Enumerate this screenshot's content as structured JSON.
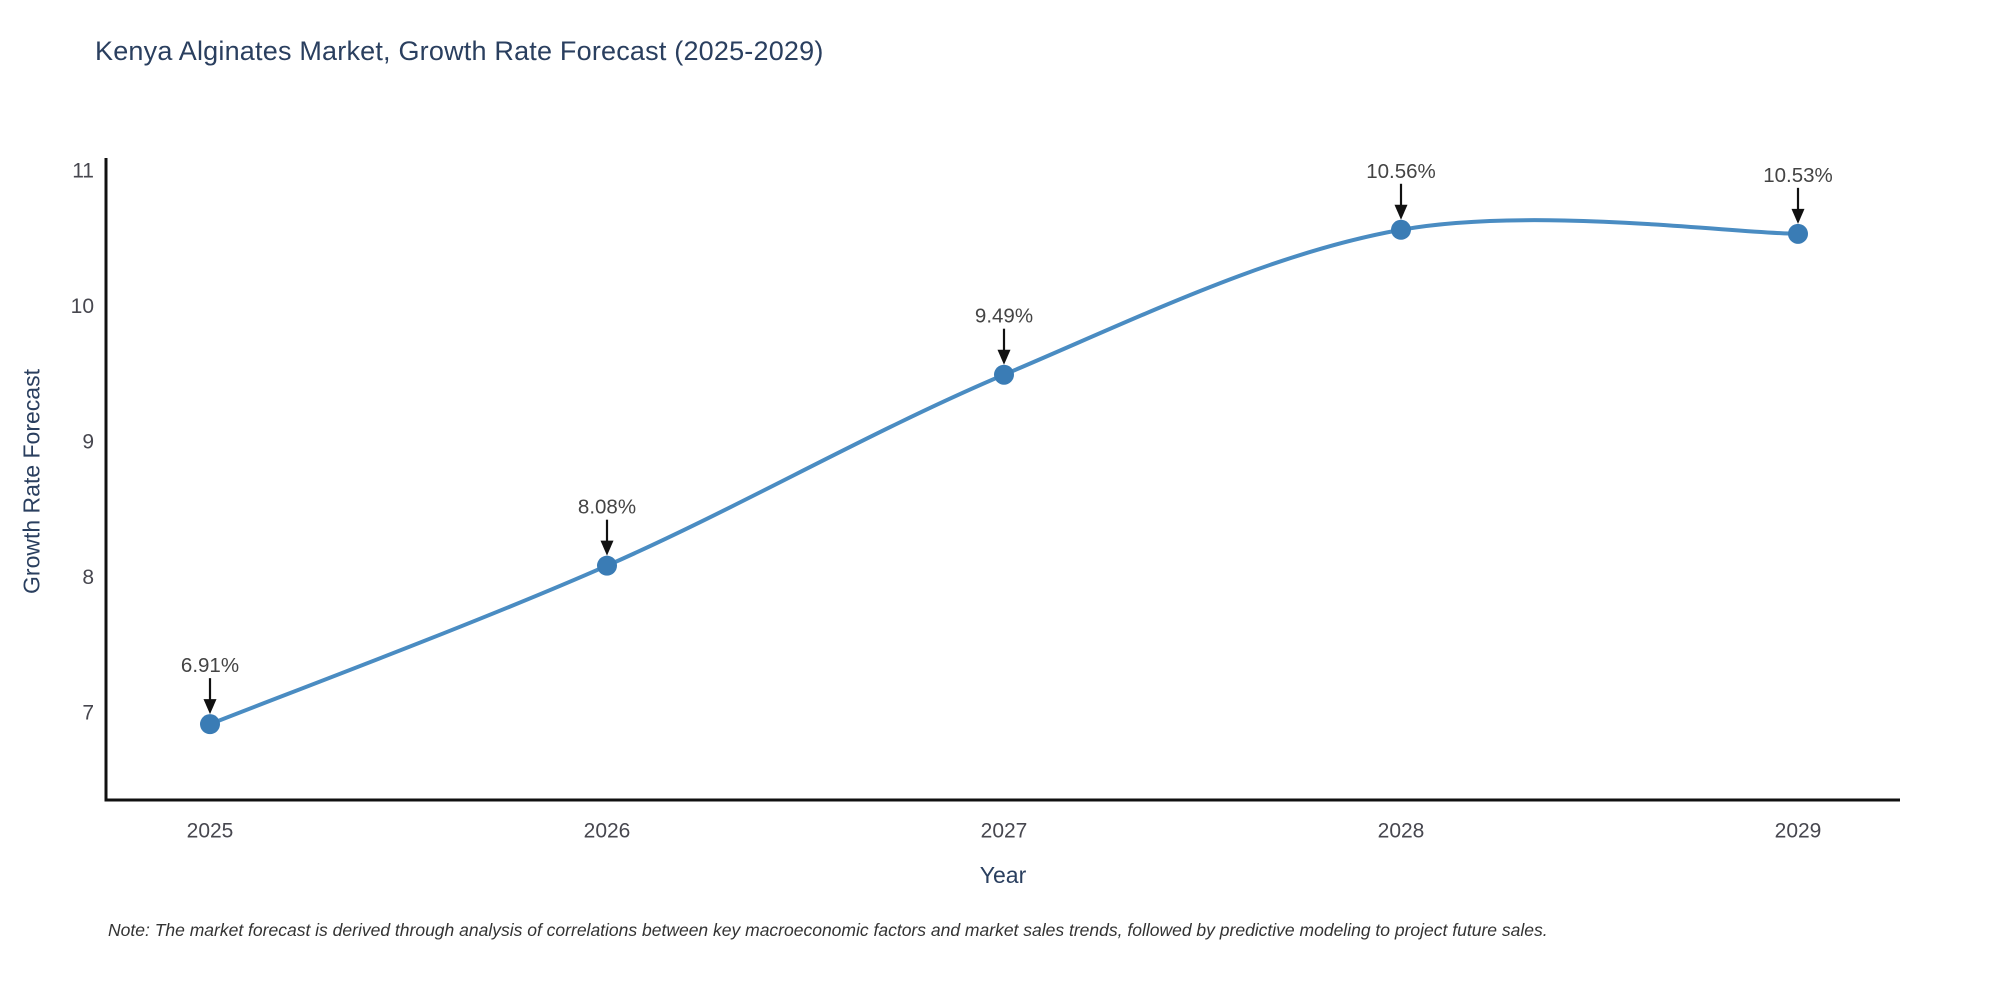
{
  "chart_data": {
    "type": "line",
    "title": "Kenya Alginates Market, Growth Rate Forecast (2025-2029)",
    "xlabel": "Year",
    "ylabel": "Growth Rate Forecast",
    "categories": [
      "2025",
      "2026",
      "2027",
      "2028",
      "2029"
    ],
    "series": [
      {
        "name": "Growth Rate Forecast",
        "values": [
          6.91,
          8.08,
          9.49,
          10.56,
          10.53
        ]
      }
    ],
    "point_labels": [
      "6.91%",
      "8.08%",
      "9.49%",
      "10.56%",
      "10.53%"
    ],
    "yticks": [
      7,
      8,
      9,
      10,
      11
    ],
    "ylim": [
      6.35,
      11.09
    ],
    "grid": false,
    "legend": "none",
    "line_shape": "spline",
    "colors": {
      "line": "#4a8cc2",
      "marker": "#3a7cb5",
      "axis": "#111111",
      "tick_label": "#47474f",
      "annotation_text": "#444444",
      "annotation_arrow": "#111111",
      "title_text": "#2a3f5f"
    },
    "footnote": "Note: The market forecast is derived through analysis of correlations between key macroeconomic factors and market sales trends, followed by predictive modeling to project future sales."
  }
}
